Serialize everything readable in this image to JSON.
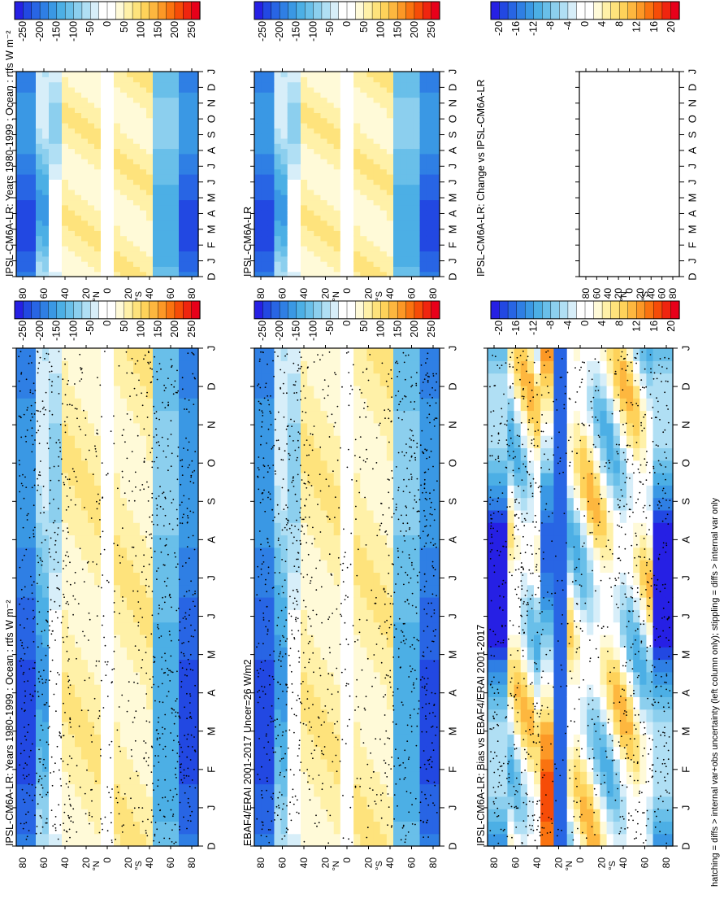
{
  "footer": "hatching = diffs > internal var+obs uncertainty (left column only); stippling = diffs > internal var only",
  "scale_main": {
    "labels": [
      "250",
      "200",
      "150",
      "100",
      "50",
      "0",
      "-50",
      "-100",
      "-150",
      "-200",
      "-250"
    ],
    "colors": [
      "#e8001a",
      "#f0250f",
      "#f64c08",
      "#fa7310",
      "#fc9826",
      "#fdb73f",
      "#fed25a",
      "#fee37c",
      "#fff1a8",
      "#fffad8",
      "#ffffff",
      "#ffffff",
      "#d7eef9",
      "#b0dff4",
      "#8ccfee",
      "#69bfe9",
      "#4cafe5",
      "#3a98e4",
      "#2f7fe4",
      "#2865e4",
      "#2248e2",
      "#2620e4"
    ]
  },
  "scale_diff": {
    "labels": [
      "20",
      "16",
      "12",
      "8",
      "4",
      "0",
      "-4",
      "-8",
      "-12",
      "-16",
      "-20"
    ],
    "colors": [
      "#e8001a",
      "#f0250f",
      "#f64c08",
      "#fa7310",
      "#fc9826",
      "#fdb73f",
      "#fed25a",
      "#fee37c",
      "#fff1a8",
      "#fffad8",
      "#ffffff",
      "#ffffff",
      "#d7eef9",
      "#b0dff4",
      "#8ccfee",
      "#69bfe9",
      "#4cafe5",
      "#3a98e4",
      "#2f7fe4",
      "#2865e4",
      "#2248e2",
      "#2620e4"
    ]
  },
  "chart_data": [
    {
      "type": "heatmap",
      "title": "IPSL-CM6A-LR: Years 1980-1999 : Ocean : rtfs W m⁻²",
      "x_ticks": [
        "D",
        "J",
        "F",
        "M",
        "A",
        "M",
        "J",
        "J",
        "A",
        "S",
        "O",
        "N",
        "D",
        "J"
      ],
      "y_ticks": [
        "80",
        "60",
        "40",
        "20",
        "0",
        "20",
        "40",
        "60",
        "80"
      ],
      "lat_hemisphere_marks": [
        "N",
        "S"
      ],
      "units": "W m⁻²",
      "stippling": true,
      "pattern": "field"
    },
    {
      "type": "heatmap",
      "title": "IPSL-CM6A-LR: Years 1980-1999 : Ocean : rtfs W m⁻²",
      "x_ticks": [
        "D",
        "J",
        "F",
        "M",
        "A",
        "M",
        "J",
        "J",
        "A",
        "S",
        "O",
        "N",
        "D",
        "J"
      ],
      "y_ticks": [
        "80",
        "60",
        "40",
        "20",
        "0",
        "20",
        "40",
        "60",
        "80"
      ],
      "lat_hemisphere_marks": [
        "N",
        "S"
      ],
      "units": "W m⁻²",
      "stippling": false,
      "pattern": "field"
    },
    {
      "type": "heatmap",
      "title": "EBAF4/ERAI 2001-2017 Uncer=26 W/m2",
      "x_ticks": [
        "D",
        "J",
        "F",
        "M",
        "A",
        "M",
        "J",
        "J",
        "A",
        "S",
        "O",
        "N",
        "D",
        "J"
      ],
      "y_ticks": [
        "80",
        "60",
        "40",
        "20",
        "0",
        "20",
        "40",
        "60",
        "80"
      ],
      "lat_hemisphere_marks": [
        "N",
        "S"
      ],
      "units": "W/m2",
      "stippling": true,
      "pattern": "field"
    },
    {
      "type": "heatmap",
      "title": "IPSL-CM6A-LR",
      "x_ticks": [
        "D",
        "J",
        "F",
        "M",
        "A",
        "M",
        "J",
        "J",
        "A",
        "S",
        "O",
        "N",
        "D",
        "J"
      ],
      "y_ticks": [
        "80",
        "60",
        "40",
        "20",
        "0",
        "20",
        "40",
        "60",
        "80"
      ],
      "lat_hemisphere_marks": [
        "N",
        "S"
      ],
      "stippling": false,
      "pattern": "field"
    },
    {
      "type": "heatmap",
      "title": "IPSL-CM6A-LR: Bias vs EBAF4/ERAI 2001-2017",
      "x_ticks": [
        "D",
        "J",
        "F",
        "M",
        "A",
        "M",
        "J",
        "J",
        "A",
        "S",
        "O",
        "N",
        "D",
        "J"
      ],
      "y_ticks": [
        "80",
        "60",
        "40",
        "20",
        "0",
        "20",
        "40",
        "60",
        "80"
      ],
      "lat_hemisphere_marks": [
        "N",
        "S"
      ],
      "stippling": true,
      "pattern": "bias"
    },
    {
      "type": "heatmap",
      "title": "IPSL-CM6A-LR: Change vs IPSL-CM6A-LR",
      "x_ticks": [
        "D",
        "J",
        "F",
        "M",
        "A",
        "M",
        "J",
        "J",
        "A",
        "S",
        "O",
        "N",
        "D",
        "J"
      ],
      "y_ticks": [
        "80",
        "60",
        "40",
        "20",
        "0",
        "20",
        "40",
        "60",
        "80"
      ],
      "lat_hemisphere_marks": [
        "N",
        "S"
      ],
      "stippling": false,
      "pattern": "empty"
    }
  ]
}
